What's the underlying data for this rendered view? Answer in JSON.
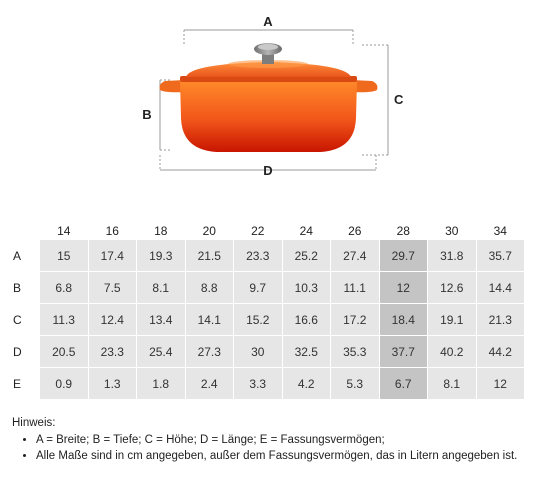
{
  "figure": {
    "labels": {
      "a": "A",
      "b": "B",
      "c": "C",
      "d": "D"
    },
    "colors": {
      "pot_top": "#ff7a1f",
      "pot_bottom": "#cc1400",
      "knob": "#8c8c8c",
      "lines": "#999999"
    }
  },
  "table": {
    "columns": [
      "14",
      "16",
      "18",
      "20",
      "22",
      "24",
      "26",
      "28",
      "30",
      "34"
    ],
    "highlight_column": 7,
    "rows": [
      {
        "label": "A",
        "values": [
          "15",
          "17.4",
          "19.3",
          "21.5",
          "23.3",
          "25.2",
          "27.4",
          "29.7",
          "31.8",
          "35.7"
        ]
      },
      {
        "label": "B",
        "values": [
          "6.8",
          "7.5",
          "8.1",
          "8.8",
          "9.7",
          "10.3",
          "11.1",
          "12",
          "12.6",
          "14.4"
        ]
      },
      {
        "label": "C",
        "values": [
          "11.3",
          "12.4",
          "13.4",
          "14.1",
          "15.2",
          "16.6",
          "17.2",
          "18.4",
          "19.1",
          "21.3"
        ]
      },
      {
        "label": "D",
        "values": [
          "20.5",
          "23.3",
          "25.4",
          "27.3",
          "30",
          "32.5",
          "35.3",
          "37.7",
          "40.2",
          "44.2"
        ]
      },
      {
        "label": "E",
        "values": [
          "0.9",
          "1.3",
          "1.8",
          "2.4",
          "3.3",
          "4.2",
          "5.3",
          "6.7",
          "8.1",
          "12"
        ]
      }
    ]
  },
  "notes": {
    "title": "Hinweis:",
    "items": [
      "A = Breite; B = Tiefe; C = Höhe; D = Länge; E = Fassungsvermögen;",
      "Alle Maße sind in cm angegeben, außer dem Fassungsvermögen, das in Litern angegeben ist."
    ]
  }
}
